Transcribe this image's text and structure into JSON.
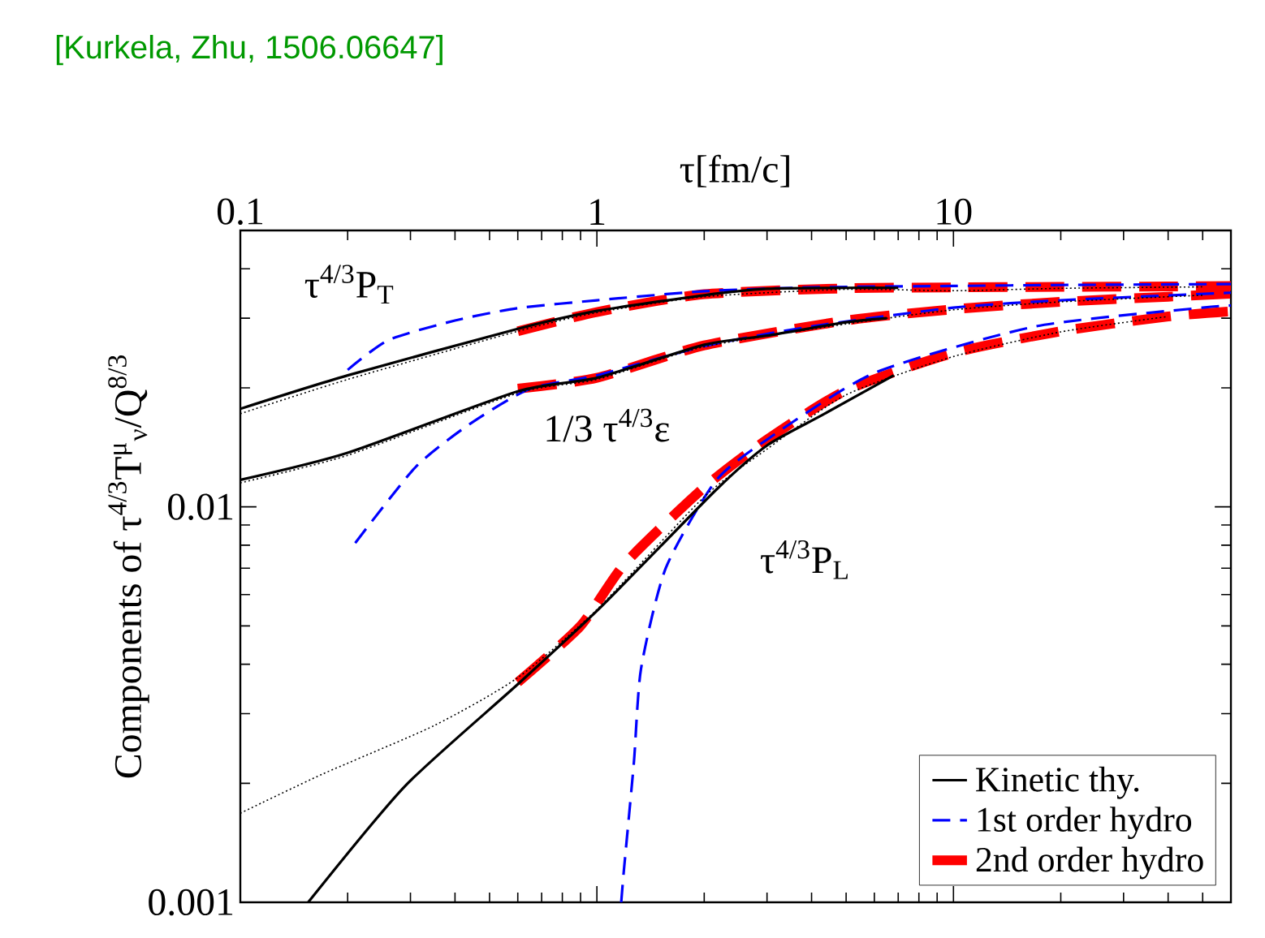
{
  "chart_data": {
    "type": "line",
    "xlabel": "τ[fm/c]",
    "ylabel": "Components of τ$^{4/3}$T$^{μ}$$_{ν}$/Q$^{8/3}$",
    "log": "xy",
    "xlim": [
      0.1,
      60
    ],
    "ylim": [
      0.001,
      0.05
    ],
    "xticks": [
      0.1,
      1,
      10
    ],
    "yticks": [
      0.001,
      0.01
    ],
    "grid": false,
    "legend": "bottom right",
    "marker": "none",
    "annotations": [
      "[Kurkela, Zhu, 1506.06647]",
      "τ$^{4/3}$P$_{T}$",
      "1/3 τ$^{4/3}$ε",
      "τ$^{4/3}$P$_{L}$"
    ],
    "series": [
      {
        "name": "2nd order hydro",
        "color": "#ff0000",
        "line_style": "dashed",
        "x": [
          0.6,
          1,
          2,
          5,
          10,
          20,
          40,
          60
        ],
        "values": [
          0.0278,
          0.0311,
          0.0345,
          0.0357,
          0.0359,
          0.036,
          0.0361,
          0.0362
        ]
      },
      {
        "color": "#ff0000",
        "line_style": "dashed",
        "x": [
          0.6,
          1,
          2,
          5,
          10,
          20,
          40,
          60
        ],
        "values": [
          0.0199,
          0.0212,
          0.0256,
          0.0296,
          0.0316,
          0.033,
          0.034,
          0.0346
        ]
      },
      {
        "color": "#ff0000",
        "line_style": "dashed",
        "x": [
          0.6,
          0.9,
          1.2,
          2,
          3,
          5,
          10,
          20,
          40,
          60
        ],
        "values": [
          0.0036,
          0.005,
          0.0072,
          0.0112,
          0.0148,
          0.0197,
          0.0245,
          0.0278,
          0.0303,
          0.0312
        ]
      },
      {
        "name": "1st order hydro",
        "color": "#0000ff",
        "line_style": "dashed",
        "x": [
          0.2,
          0.26,
          0.4,
          0.6,
          1,
          2,
          4,
          10,
          20,
          60
        ],
        "values": [
          0.0222,
          0.0264,
          0.0296,
          0.0318,
          0.0333,
          0.0351,
          0.0359,
          0.0362,
          0.0364,
          0.0366
        ]
      },
      {
        "color": "#0000ff",
        "line_style": "dashed",
        "x": [
          0.21,
          0.31,
          0.44,
          0.65,
          1,
          2,
          4,
          10,
          20,
          60
        ],
        "values": [
          0.0081,
          0.0126,
          0.0162,
          0.0199,
          0.0215,
          0.0255,
          0.0286,
          0.0319,
          0.0333,
          0.0348
        ]
      },
      {
        "color": "#0000ff",
        "line_style": "dashed",
        "x": [
          1.17,
          1.19,
          1.27,
          1.33,
          1.56,
          2.15,
          3,
          6,
          17,
          50,
          60
        ],
        "values": [
          0.001,
          0.0012,
          0.00226,
          0.0039,
          0.007,
          0.0116,
          0.0148,
          0.0218,
          0.0286,
          0.0319,
          0.0323
        ]
      },
      {
        "name": "Kinetic thy.",
        "color": "#000000",
        "line_style": "solid",
        "x": [
          0.1,
          0.2,
          0.6,
          1,
          2,
          3,
          5,
          7
        ],
        "values": [
          0.0177,
          0.0215,
          0.0282,
          0.0313,
          0.0343,
          0.0356,
          0.0358,
          0.0358
        ]
      },
      {
        "color": "#000000",
        "line_style": "solid",
        "x": [
          0.1,
          0.2,
          0.6,
          1,
          2,
          3,
          5,
          6.5
        ],
        "values": [
          0.0117,
          0.0137,
          0.0196,
          0.0212,
          0.0257,
          0.0271,
          0.0293,
          0.03
        ]
      },
      {
        "color": "#000000",
        "line_style": "solid",
        "x": [
          0.155,
          0.29,
          0.6,
          1.03,
          2.15,
          3,
          4.3,
          6.8
        ],
        "values": [
          0.001,
          0.00197,
          0.00356,
          0.0056,
          0.011,
          0.0143,
          0.0171,
          0.0215
        ]
      },
      {
        "color": "#000000",
        "line_style": "dotted",
        "x": [
          0.1,
          0.2,
          0.6,
          1,
          2,
          5,
          10,
          20,
          50
        ],
        "values": [
          0.0172,
          0.021,
          0.0278,
          0.031,
          0.034,
          0.0355,
          0.0352,
          0.0357,
          0.036
        ]
      },
      {
        "color": "#000000",
        "line_style": "dotted",
        "x": [
          0.1,
          0.2,
          0.6,
          1,
          2,
          5,
          10,
          20,
          50
        ],
        "values": [
          0.0115,
          0.0135,
          0.0194,
          0.021,
          0.0254,
          0.029,
          0.0315,
          0.033,
          0.0343
        ]
      },
      {
        "color": "#000000",
        "line_style": "dotted",
        "x": [
          0.1,
          0.17,
          0.35,
          0.6,
          1,
          2,
          3,
          5,
          10,
          20,
          40
        ],
        "values": [
          0.00168,
          0.00211,
          0.0028,
          0.0037,
          0.0055,
          0.0106,
          0.014,
          0.0192,
          0.024,
          0.0277,
          0.0303
        ]
      }
    ]
  }
}
